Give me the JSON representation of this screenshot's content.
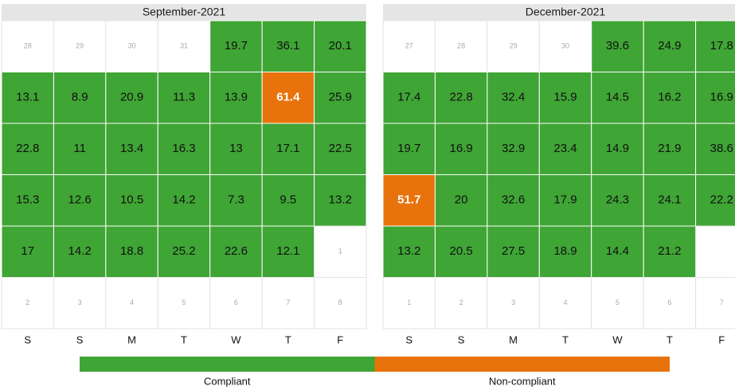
{
  "chart_data": {
    "type": "calendar",
    "weekdays": [
      "S",
      "S",
      "M",
      "T",
      "W",
      "T",
      "F"
    ],
    "legend": [
      {
        "name": "Compliant",
        "color": "#3fa535"
      },
      {
        "name": "Non-compliant",
        "color": "#e8730c"
      }
    ],
    "panels": [
      {
        "title": "September-2021",
        "weeks": [
          [
            {
              "day": 28
            },
            {
              "day": 29
            },
            {
              "day": 30
            },
            {
              "day": 31
            },
            {
              "value": 19.7,
              "color": "#3fa535"
            },
            {
              "value": 36.1,
              "color": "#3fa535"
            },
            {
              "value": 20.1,
              "color": "#3fa535"
            }
          ],
          [
            {
              "value": 13.1,
              "color": "#3fa535"
            },
            {
              "value": 8.9,
              "color": "#3fa535"
            },
            {
              "value": 20.9,
              "color": "#3fa535"
            },
            {
              "value": 11.3,
              "color": "#3fa535"
            },
            {
              "value": 13.9,
              "color": "#3fa535"
            },
            {
              "value": 61.4,
              "color": "#e8730c"
            },
            {
              "value": 25.9,
              "color": "#3fa535"
            }
          ],
          [
            {
              "value": 22.8,
              "color": "#3fa535"
            },
            {
              "value": 11,
              "color": "#3fa535"
            },
            {
              "value": 13.4,
              "color": "#3fa535"
            },
            {
              "value": 16.3,
              "color": "#3fa535"
            },
            {
              "value": 13,
              "color": "#3fa535"
            },
            {
              "value": 17.1,
              "color": "#3fa535"
            },
            {
              "value": 22.5,
              "color": "#3fa535"
            }
          ],
          [
            {
              "value": 15.3,
              "color": "#3fa535"
            },
            {
              "value": 12.6,
              "color": "#3fa535"
            },
            {
              "value": 10.5,
              "color": "#3fa535"
            },
            {
              "value": 14.2,
              "color": "#3fa535"
            },
            {
              "value": 7.3,
              "color": "#3fa535"
            },
            {
              "value": 9.5,
              "color": "#3fa535"
            },
            {
              "value": 13.2,
              "color": "#3fa535"
            }
          ],
          [
            {
              "value": 17,
              "color": "#3fa535"
            },
            {
              "value": 14.2,
              "color": "#3fa535"
            },
            {
              "value": 18.8,
              "color": "#3fa535"
            },
            {
              "value": 25.2,
              "color": "#3fa535"
            },
            {
              "value": 22.6,
              "color": "#3fa535"
            },
            {
              "value": 12.1,
              "color": "#3fa535"
            },
            {
              "day": 1
            }
          ],
          [
            {
              "day": 2
            },
            {
              "day": 3
            },
            {
              "day": 4
            },
            {
              "day": 5
            },
            {
              "day": 6
            },
            {
              "day": 7
            },
            {
              "day": 8
            }
          ]
        ]
      },
      {
        "title": "December-2021",
        "weeks": [
          [
            {
              "day": 27
            },
            {
              "day": 28
            },
            {
              "day": 29
            },
            {
              "day": 30
            },
            {
              "value": 39.6,
              "color": "#3fa535"
            },
            {
              "value": 24.9,
              "color": "#3fa535"
            },
            {
              "value": 17.8,
              "color": "#3fa535"
            }
          ],
          [
            {
              "value": 17.4,
              "color": "#3fa535"
            },
            {
              "value": 22.8,
              "color": "#3fa535"
            },
            {
              "value": 32.4,
              "color": "#3fa535"
            },
            {
              "value": 15.9,
              "color": "#3fa535"
            },
            {
              "value": 14.5,
              "color": "#3fa535"
            },
            {
              "value": 16.2,
              "color": "#3fa535"
            },
            {
              "value": 16.9,
              "color": "#3fa535"
            }
          ],
          [
            {
              "value": 19.7,
              "color": "#3fa535"
            },
            {
              "value": 16.9,
              "color": "#3fa535"
            },
            {
              "value": 32.9,
              "color": "#3fa535"
            },
            {
              "value": 23.4,
              "color": "#3fa535"
            },
            {
              "value": 14.9,
              "color": "#3fa535"
            },
            {
              "value": 21.9,
              "color": "#3fa535"
            },
            {
              "value": 38.6,
              "color": "#3fa535"
            }
          ],
          [
            {
              "value": 51.7,
              "color": "#e8730c"
            },
            {
              "value": 20,
              "color": "#3fa535"
            },
            {
              "value": 32.6,
              "color": "#3fa535"
            },
            {
              "value": 17.9,
              "color": "#3fa535"
            },
            {
              "value": 24.3,
              "color": "#3fa535"
            },
            {
              "value": 24.1,
              "color": "#3fa535"
            },
            {
              "value": 22.2,
              "color": "#3fa535"
            }
          ],
          [
            {
              "value": 13.2,
              "color": "#3fa535"
            },
            {
              "value": 20.5,
              "color": "#3fa535"
            },
            {
              "value": 27.5,
              "color": "#3fa535"
            },
            {
              "value": 18.9,
              "color": "#3fa535"
            },
            {
              "value": 14.4,
              "color": "#3fa535"
            },
            {
              "value": 21.2,
              "color": "#3fa535"
            },
            null
          ],
          [
            {
              "day": 1
            },
            {
              "day": 2
            },
            {
              "day": 3
            },
            {
              "day": 4
            },
            {
              "day": 5
            },
            {
              "day": 6
            },
            {
              "day": 7
            }
          ]
        ]
      }
    ]
  }
}
